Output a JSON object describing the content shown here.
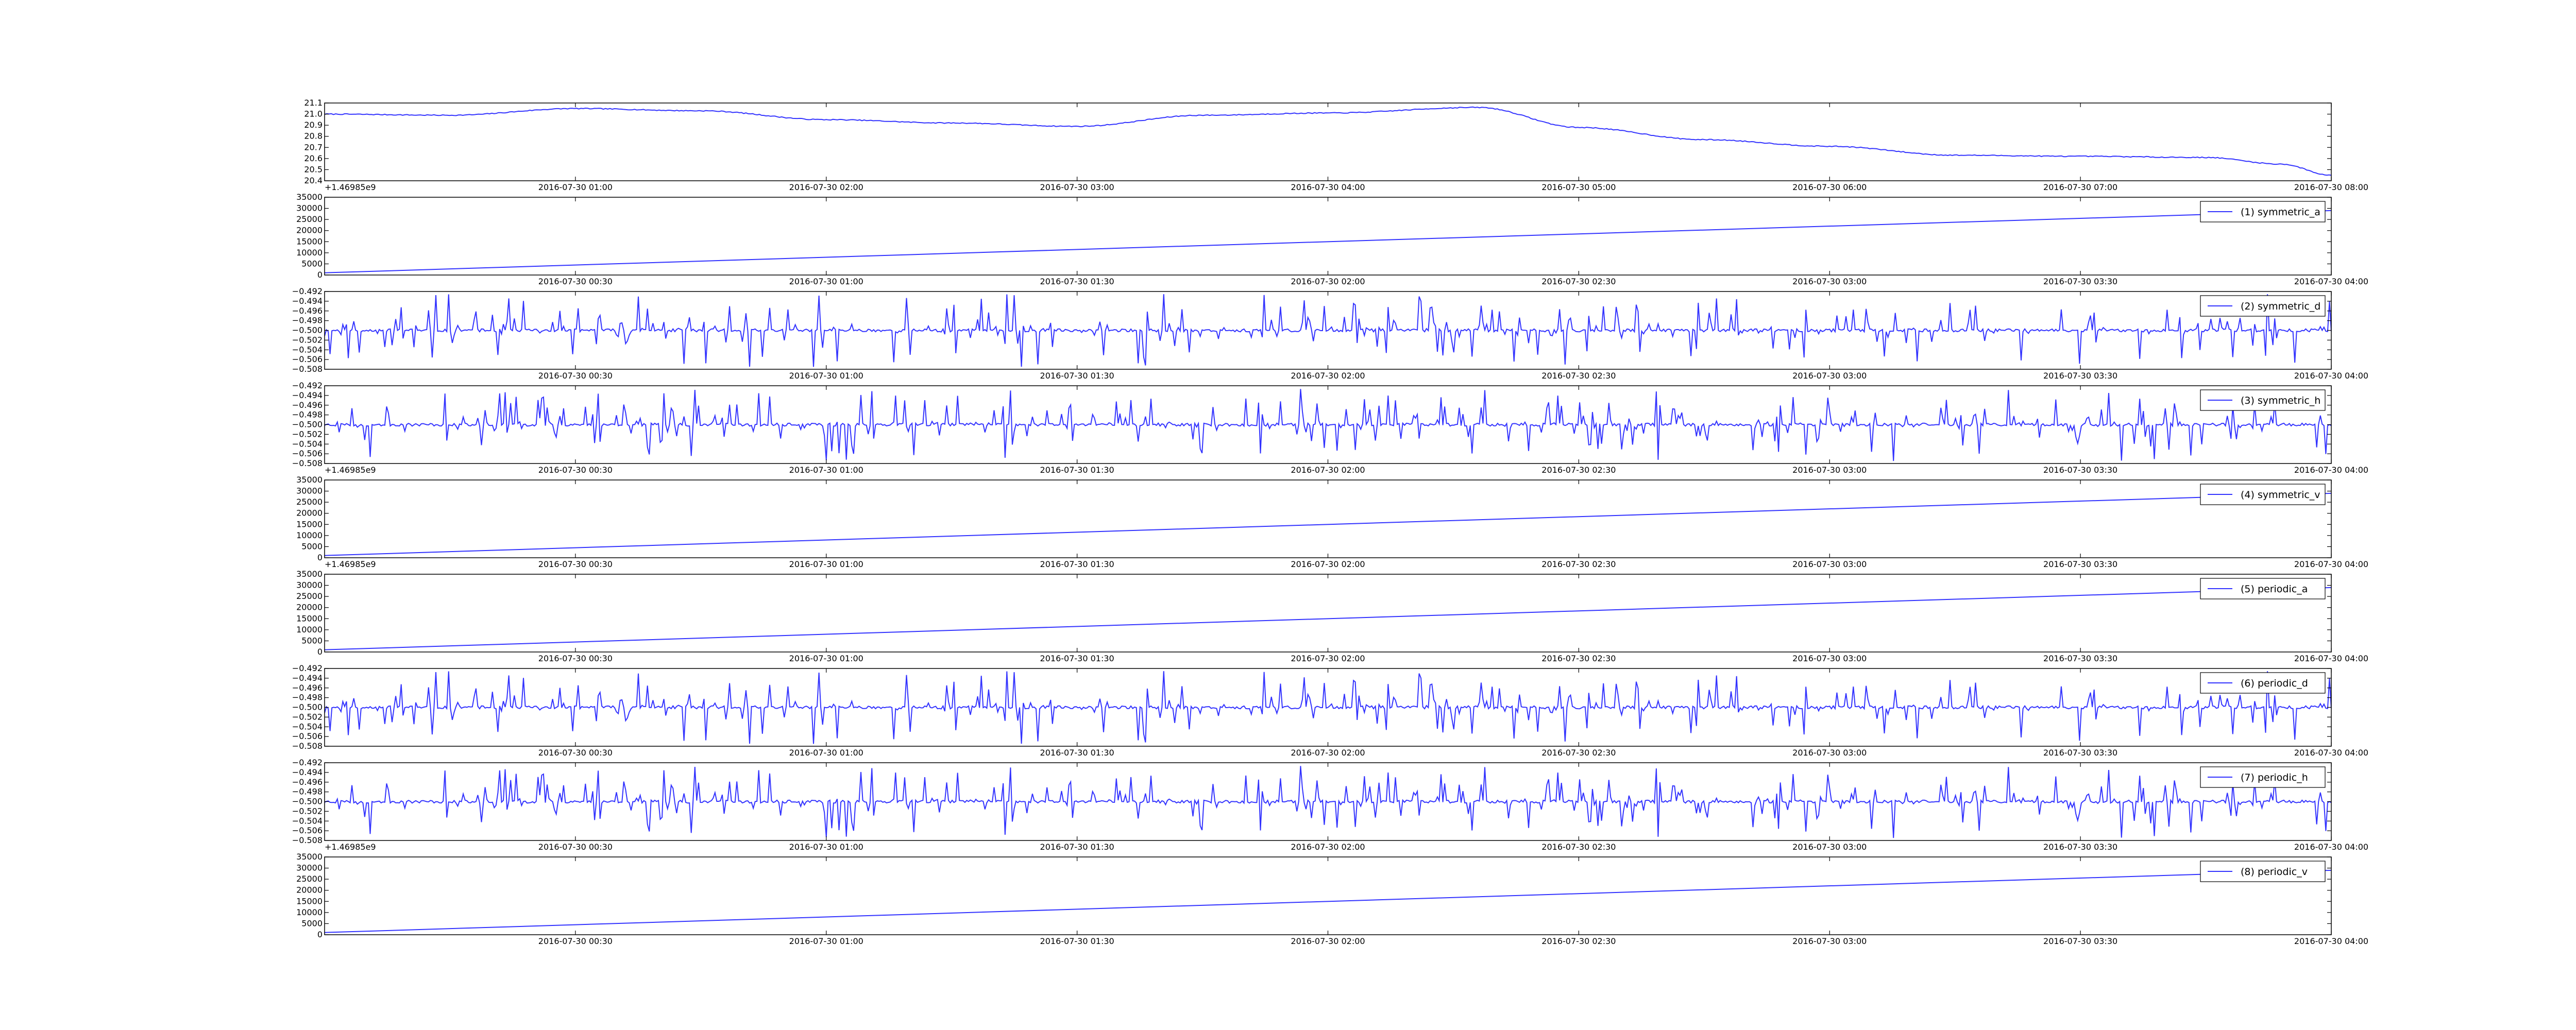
{
  "theme": {
    "line_color": "#3333ff",
    "axis_color": "#000000",
    "background": "#ffffff"
  },
  "chart_data": [
    {
      "type": "line",
      "legend": "",
      "shape": "smooth",
      "x_range": [
        0,
        8
      ],
      "x_ticks": [
        1,
        2,
        3,
        4,
        5,
        6,
        7,
        8
      ],
      "x_tick_labels": [
        "2016-07-30 01:00",
        "2016-07-30 02:00",
        "2016-07-30 03:00",
        "2016-07-30 04:00",
        "2016-07-30 05:00",
        "2016-07-30 06:00",
        "2016-07-30 07:00",
        "2016-07-30 08:00"
      ],
      "y_offset_label": "+1.46985e9",
      "ylim": [
        20.4,
        21.1
      ],
      "y_ticks": [
        20.4,
        20.5,
        20.6,
        20.7,
        20.8,
        20.9,
        21.0,
        21.1
      ],
      "y_tick_labels": [
        "20.4",
        "20.5",
        "20.6",
        "20.7",
        "20.8",
        "20.9",
        "21.0",
        "21.1"
      ],
      "x": [
        0,
        0.5,
        1,
        1.5,
        2,
        2.5,
        3,
        3.5,
        4,
        4.6,
        5,
        5.5,
        6,
        6.5,
        7,
        7.5,
        7.8,
        8
      ],
      "y": [
        21.0,
        20.99,
        21.05,
        21.03,
        20.95,
        20.92,
        20.89,
        20.99,
        21.01,
        21.06,
        20.88,
        20.77,
        20.71,
        20.63,
        20.62,
        20.61,
        20.55,
        20.45
      ]
    },
    {
      "type": "line",
      "legend": "(1) symmetric_a",
      "shape": "linear",
      "x_range": [
        0,
        4
      ],
      "x_ticks": [
        0.5,
        1,
        1.5,
        2,
        2.5,
        3,
        3.5,
        4
      ],
      "x_tick_labels": [
        "2016-07-30 00:30",
        "2016-07-30 01:00",
        "2016-07-30 01:30",
        "2016-07-30 02:00",
        "2016-07-30 02:30",
        "2016-07-30 03:00",
        "2016-07-30 03:30",
        "2016-07-30 04:00"
      ],
      "y_offset_label": "",
      "ylim": [
        0,
        35000
      ],
      "y_ticks": [
        0,
        5000,
        10000,
        15000,
        20000,
        25000,
        30000,
        35000
      ],
      "y_tick_labels": [
        "0",
        "5000",
        "10000",
        "15000",
        "20000",
        "25000",
        "30000",
        "35000"
      ],
      "x": [
        0,
        4
      ],
      "y": [
        1000,
        29000
      ]
    },
    {
      "type": "line",
      "legend": "(2) symmetric_d",
      "shape": "spiky",
      "seed": 11,
      "x_range": [
        0,
        4
      ],
      "x_ticks": [
        0.5,
        1,
        1.5,
        2,
        2.5,
        3,
        3.5,
        4
      ],
      "x_tick_labels": [
        "2016-07-30 00:30",
        "2016-07-30 01:00",
        "2016-07-30 01:30",
        "2016-07-30 02:00",
        "2016-07-30 02:30",
        "2016-07-30 03:00",
        "2016-07-30 03:30",
        "2016-07-30 04:00"
      ],
      "y_offset_label": "",
      "ylim": [
        -0.508,
        -0.492
      ],
      "y_ticks": [
        -0.508,
        -0.506,
        -0.504,
        -0.502,
        -0.5,
        -0.498,
        -0.496,
        -0.494,
        -0.492
      ],
      "y_tick_labels": [
        "−0.508",
        "−0.506",
        "−0.504",
        "−0.502",
        "−0.500",
        "−0.498",
        "−0.496",
        "−0.494",
        "−0.492"
      ],
      "baseline": -0.5,
      "amplitude": 0.0075
    },
    {
      "type": "line",
      "legend": "(3) symmetric_h",
      "shape": "spiky",
      "seed": 23,
      "x_range": [
        0,
        4
      ],
      "x_ticks": [
        0.5,
        1,
        1.5,
        2,
        2.5,
        3,
        3.5,
        4
      ],
      "x_tick_labels": [
        "2016-07-30 00:30",
        "2016-07-30 01:00",
        "2016-07-30 01:30",
        "2016-07-30 02:00",
        "2016-07-30 02:30",
        "2016-07-30 03:00",
        "2016-07-30 03:30",
        "2016-07-30 04:00"
      ],
      "y_offset_label": "+1.46985e9",
      "ylim": [
        -0.508,
        -0.492
      ],
      "y_ticks": [
        -0.508,
        -0.506,
        -0.504,
        -0.502,
        -0.5,
        -0.498,
        -0.496,
        -0.494,
        -0.492
      ],
      "y_tick_labels": [
        "−0.508",
        "−0.506",
        "−0.504",
        "−0.502",
        "−0.500",
        "−0.498",
        "−0.496",
        "−0.494",
        "−0.492"
      ],
      "baseline": -0.5,
      "amplitude": 0.0075
    },
    {
      "type": "line",
      "legend": "(4) symmetric_v",
      "shape": "linear",
      "x_range": [
        0,
        4
      ],
      "x_ticks": [
        0.5,
        1,
        1.5,
        2,
        2.5,
        3,
        3.5,
        4
      ],
      "x_tick_labels": [
        "2016-07-30 00:30",
        "2016-07-30 01:00",
        "2016-07-30 01:30",
        "2016-07-30 02:00",
        "2016-07-30 02:30",
        "2016-07-30 03:00",
        "2016-07-30 03:30",
        "2016-07-30 04:00"
      ],
      "y_offset_label": "+1.46985e9",
      "ylim": [
        0,
        35000
      ],
      "y_ticks": [
        0,
        5000,
        10000,
        15000,
        20000,
        25000,
        30000,
        35000
      ],
      "y_tick_labels": [
        "0",
        "5000",
        "10000",
        "15000",
        "20000",
        "25000",
        "30000",
        "35000"
      ],
      "x": [
        0,
        4
      ],
      "y": [
        1000,
        29000
      ]
    },
    {
      "type": "line",
      "legend": "(5) periodic_a",
      "shape": "linear",
      "x_range": [
        0,
        4
      ],
      "x_ticks": [
        0.5,
        1,
        1.5,
        2,
        2.5,
        3,
        3.5,
        4
      ],
      "x_tick_labels": [
        "2016-07-30 00:30",
        "2016-07-30 01:00",
        "2016-07-30 01:30",
        "2016-07-30 02:00",
        "2016-07-30 02:30",
        "2016-07-30 03:00",
        "2016-07-30 03:30",
        "2016-07-30 04:00"
      ],
      "y_offset_label": "",
      "ylim": [
        0,
        35000
      ],
      "y_ticks": [
        0,
        5000,
        10000,
        15000,
        20000,
        25000,
        30000,
        35000
      ],
      "y_tick_labels": [
        "0",
        "5000",
        "10000",
        "15000",
        "20000",
        "25000",
        "30000",
        "35000"
      ],
      "x": [
        0,
        4
      ],
      "y": [
        1000,
        29000
      ]
    },
    {
      "type": "line",
      "legend": "(6) periodic_d",
      "shape": "spiky",
      "seed": 11,
      "x_range": [
        0,
        4
      ],
      "x_ticks": [
        0.5,
        1,
        1.5,
        2,
        2.5,
        3,
        3.5,
        4
      ],
      "x_tick_labels": [
        "2016-07-30 00:30",
        "2016-07-30 01:00",
        "2016-07-30 01:30",
        "2016-07-30 02:00",
        "2016-07-30 02:30",
        "2016-07-30 03:00",
        "2016-07-30 03:30",
        "2016-07-30 04:00"
      ],
      "y_offset_label": "",
      "ylim": [
        -0.508,
        -0.492
      ],
      "y_ticks": [
        -0.508,
        -0.506,
        -0.504,
        -0.502,
        -0.5,
        -0.498,
        -0.496,
        -0.494,
        -0.492
      ],
      "y_tick_labels": [
        "−0.508",
        "−0.506",
        "−0.504",
        "−0.502",
        "−0.500",
        "−0.498",
        "−0.496",
        "−0.494",
        "−0.492"
      ],
      "baseline": -0.5,
      "amplitude": 0.0075
    },
    {
      "type": "line",
      "legend": "(7) periodic_h",
      "shape": "spiky",
      "seed": 23,
      "x_range": [
        0,
        4
      ],
      "x_ticks": [
        0.5,
        1,
        1.5,
        2,
        2.5,
        3,
        3.5,
        4
      ],
      "x_tick_labels": [
        "2016-07-30 00:30",
        "2016-07-30 01:00",
        "2016-07-30 01:30",
        "2016-07-30 02:00",
        "2016-07-30 02:30",
        "2016-07-30 03:00",
        "2016-07-30 03:30",
        "2016-07-30 04:00"
      ],
      "y_offset_label": "+1.46985e9",
      "ylim": [
        -0.508,
        -0.492
      ],
      "y_ticks": [
        -0.508,
        -0.506,
        -0.504,
        -0.502,
        -0.5,
        -0.498,
        -0.496,
        -0.494,
        -0.492
      ],
      "y_tick_labels": [
        "−0.508",
        "−0.506",
        "−0.504",
        "−0.502",
        "−0.500",
        "−0.498",
        "−0.496",
        "−0.494",
        "−0.492"
      ],
      "baseline": -0.5,
      "amplitude": 0.0075
    },
    {
      "type": "line",
      "legend": "(8) periodic_v",
      "shape": "linear",
      "x_range": [
        0,
        4
      ],
      "x_ticks": [
        0.5,
        1,
        1.5,
        2,
        2.5,
        3,
        3.5,
        4
      ],
      "x_tick_labels": [
        "2016-07-30 00:30",
        "2016-07-30 01:00",
        "2016-07-30 01:30",
        "2016-07-30 02:00",
        "2016-07-30 02:30",
        "2016-07-30 03:00",
        "2016-07-30 03:30",
        "2016-07-30 04:00"
      ],
      "y_offset_label": "",
      "ylim": [
        0,
        35000
      ],
      "y_ticks": [
        0,
        5000,
        10000,
        15000,
        20000,
        25000,
        30000,
        35000
      ],
      "y_tick_labels": [
        "0",
        "5000",
        "10000",
        "15000",
        "20000",
        "25000",
        "30000",
        "35000"
      ],
      "x": [
        0,
        4
      ],
      "y": [
        1000,
        29000
      ]
    }
  ]
}
